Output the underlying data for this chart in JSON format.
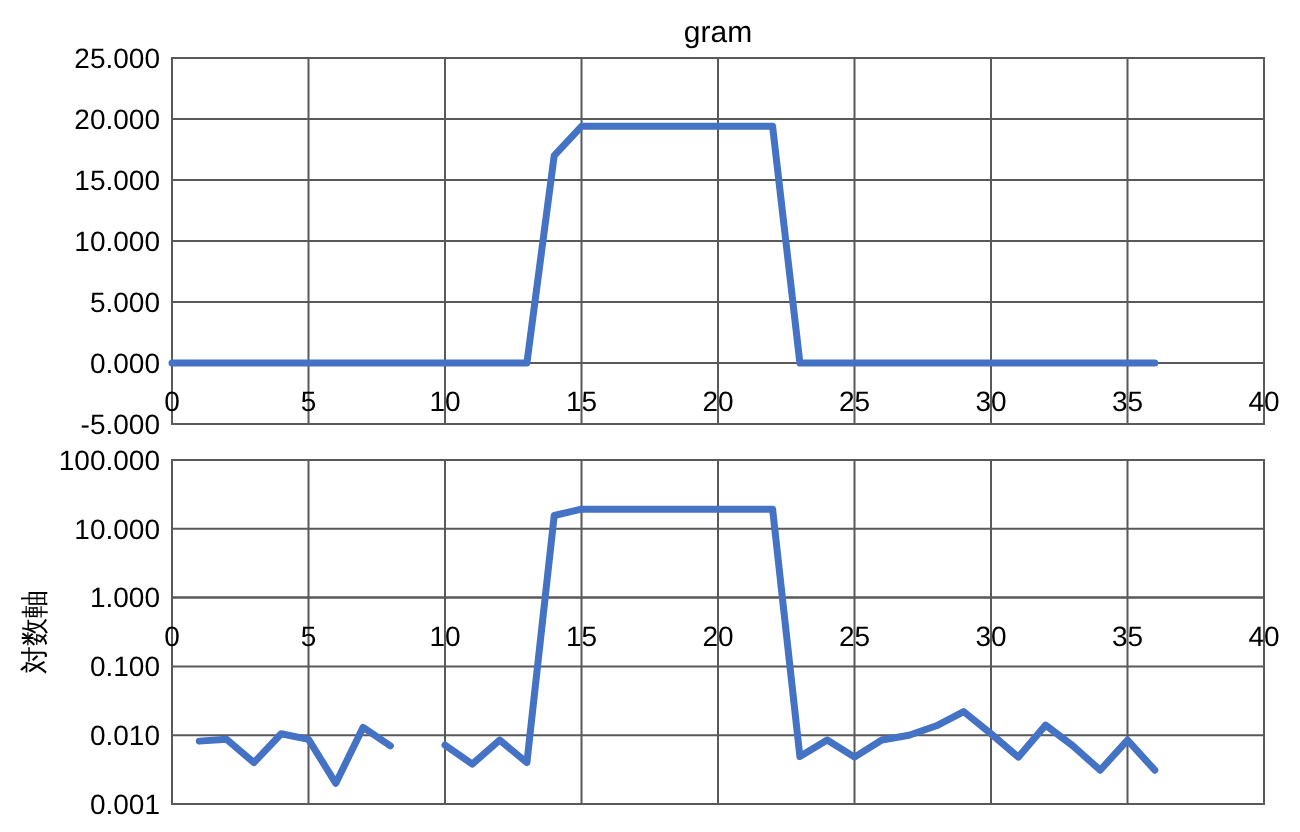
{
  "chart_data": [
    {
      "type": "line",
      "title": "gram",
      "x": [
        0,
        1,
        2,
        3,
        4,
        5,
        6,
        7,
        8,
        9,
        10,
        11,
        12,
        13,
        14,
        15,
        16,
        17,
        18,
        19,
        20,
        21,
        22,
        23,
        24,
        25,
        26,
        27,
        28,
        29,
        30,
        31,
        32,
        33,
        34,
        35,
        36
      ],
      "series": [
        {
          "color": "#4472c4",
          "values": [
            0,
            0,
            0,
            0,
            0,
            0,
            0,
            0,
            0,
            0,
            0,
            0,
            0,
            0,
            17,
            19.4,
            19.4,
            19.4,
            19.4,
            19.4,
            19.4,
            19.4,
            19.4,
            0,
            0,
            0,
            0,
            0,
            0,
            0,
            0,
            0,
            0,
            0,
            0,
            0,
            0
          ]
        }
      ],
      "xlim": [
        0,
        40
      ],
      "xticks": [
        0,
        5,
        10,
        15,
        20,
        25,
        30,
        35,
        40
      ],
      "ylim": [
        -5,
        25
      ],
      "yticks": [
        {
          "value": -5,
          "label": "-5.000"
        },
        {
          "value": 0,
          "label": "0.000"
        },
        {
          "value": 5,
          "label": "5.000"
        },
        {
          "value": 10,
          "label": "10.000"
        },
        {
          "value": 15,
          "label": "15.000"
        },
        {
          "value": 20,
          "label": "20.000"
        },
        {
          "value": 25,
          "label": "25.000"
        }
      ],
      "grid": true,
      "line_style": "solid"
    },
    {
      "type": "line",
      "ylabel": "対数軸",
      "log": "y",
      "x": [
        1,
        2,
        3,
        4,
        5,
        6,
        7,
        8,
        9,
        10,
        11,
        12,
        13,
        14,
        15,
        16,
        17,
        18,
        19,
        20,
        21,
        22,
        23,
        24,
        25,
        26,
        27,
        28,
        29,
        30,
        31,
        32,
        33,
        34,
        35,
        36
      ],
      "series": [
        {
          "color": "#4472c4",
          "values": [
            0.0082,
            0.0087,
            0.004,
            0.0105,
            0.0087,
            0.002,
            0.013,
            0.007,
            null,
            0.0072,
            0.0038,
            0.0085,
            0.004,
            15.6,
            19.3,
            19.3,
            19.3,
            19.3,
            19.3,
            19.3,
            19.3,
            19.3,
            0.0049,
            0.0085,
            0.0048,
            0.0085,
            0.01,
            0.0137,
            0.022,
            0.0105,
            0.0048,
            0.014,
            0.007,
            0.0031,
            0.0085,
            0.0031
          ]
        }
      ],
      "xlim": [
        0,
        40
      ],
      "xticks": [
        0,
        5,
        10,
        15,
        20,
        25,
        30,
        35,
        40
      ],
      "ylim": [
        0.001,
        100
      ],
      "yticks": [
        {
          "value": 0.001,
          "label": "0.001"
        },
        {
          "value": 0.01,
          "label": "0.010"
        },
        {
          "value": 0.1,
          "label": "0.100"
        },
        {
          "value": 1,
          "label": "1.000"
        },
        {
          "value": 10,
          "label": "10.000"
        },
        {
          "value": 100,
          "label": "100.000"
        }
      ],
      "grid": true,
      "line_style": "solid"
    }
  ]
}
